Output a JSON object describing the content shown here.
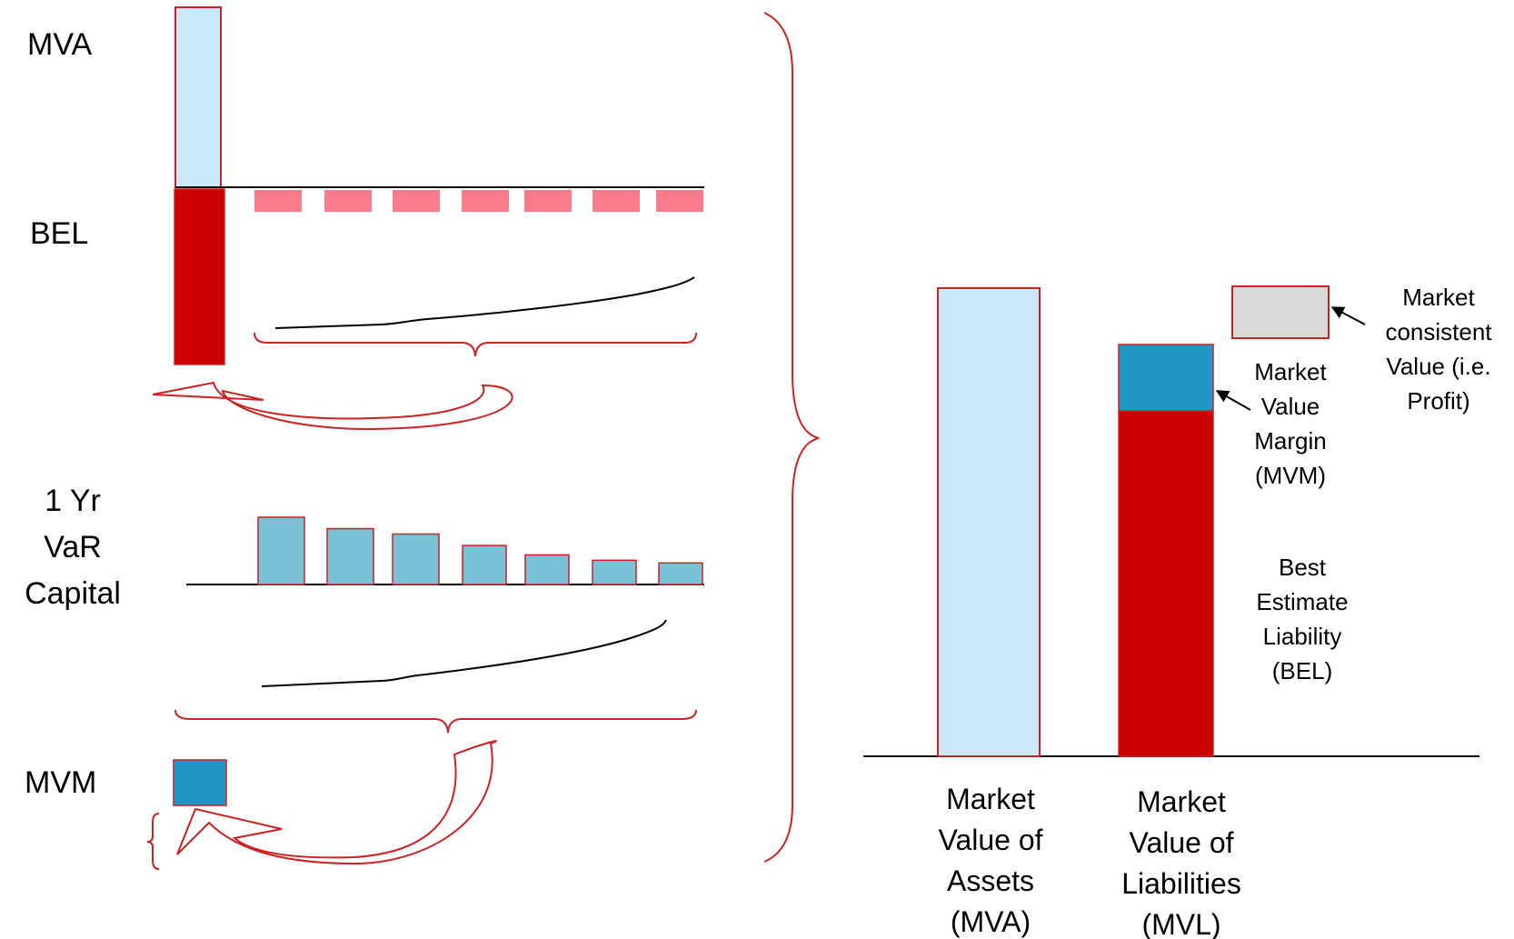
{
  "left": {
    "mva_label": "MVA",
    "bel_label": "BEL",
    "var_label": [
      "1 Yr",
      "VaR",
      "Capital"
    ],
    "mvm_label": "MVM",
    "bel_cashflow_count": 7,
    "var_capital_profile": [
      1.0,
      0.83,
      0.75,
      0.58,
      0.44,
      0.36,
      0.32
    ]
  },
  "right": {
    "assets_label": [
      "Market",
      "Value of",
      "Assets",
      "(MVA)"
    ],
    "liabilities_label": [
      "Market",
      "Value of",
      "Liabilities",
      "(MVL)"
    ],
    "mvm_annotation": [
      "Market",
      "Value",
      "Margin",
      "(MVM)"
    ],
    "bel_annotation": [
      "Best",
      "Estimate",
      "Liability",
      "(BEL)"
    ],
    "profit_annotation": [
      "Market",
      "consistent",
      "Value (i.e.",
      "Profit)"
    ]
  },
  "colors": {
    "asset_fill": "#cce9fb",
    "bel_fill": "#cc0000",
    "bel_cashflow_fill": "#f97c8d",
    "var_fill": "#78c1d7",
    "mvm_fill": "#2196c4",
    "profit_fill": "#d9d9d9",
    "outline": "#cc2222"
  }
}
